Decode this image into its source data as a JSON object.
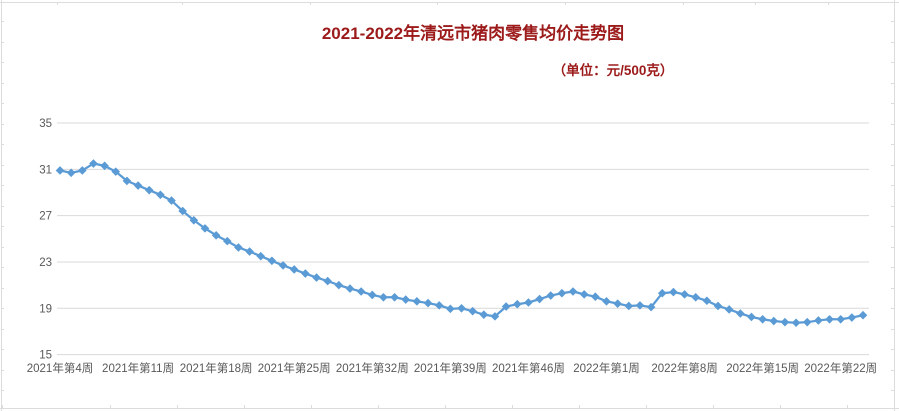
{
  "colors": {
    "line": "#5B9BD5",
    "grid": "#D9D9D9",
    "axis_text": "#595959",
    "title_text": "#9C1A1A",
    "sheet_grid": "#DCDCDC"
  },
  "chart_data": {
    "type": "line",
    "title": "2021-2022年清远市猪肉零售均价走势图",
    "subtitle": "（单位：元/500克）",
    "xlabel": "",
    "ylabel": "",
    "ylim": [
      15,
      35
    ],
    "yticks": [
      15,
      19,
      23,
      27,
      31,
      35
    ],
    "grid": true,
    "legend": "none",
    "marker": "diamond",
    "n_points": 73,
    "points_per_tick": 7,
    "x_tick_labels": [
      "2021年第4周",
      "2021年第11周",
      "2021年第18周",
      "2021年第25周",
      "2021年第32周",
      "2021年第39周",
      "2021年第46周",
      "2022年第1周",
      "2022年第8周",
      "2022年第15周",
      "2022年第22周"
    ],
    "series": [
      {
        "name": "猪肉零售均价",
        "values": [
          30.9,
          30.7,
          30.9,
          31.5,
          31.3,
          30.8,
          30.0,
          29.6,
          29.2,
          28.8,
          28.3,
          27.4,
          26.6,
          25.9,
          25.3,
          24.8,
          24.25,
          23.9,
          23.5,
          23.1,
          22.7,
          22.35,
          22.0,
          21.65,
          21.35,
          21.0,
          20.7,
          20.45,
          20.15,
          19.95,
          19.95,
          19.75,
          19.6,
          19.45,
          19.25,
          18.95,
          19.0,
          18.75,
          18.45,
          18.3,
          19.15,
          19.35,
          19.5,
          19.8,
          20.1,
          20.3,
          20.45,
          20.2,
          20.0,
          19.6,
          19.4,
          19.2,
          19.25,
          19.1,
          20.3,
          20.4,
          20.2,
          19.95,
          19.65,
          19.2,
          18.9,
          18.55,
          18.25,
          18.05,
          17.9,
          17.8,
          17.75,
          17.8,
          17.95,
          18.05,
          18.05,
          18.2,
          18.4
        ]
      }
    ]
  }
}
